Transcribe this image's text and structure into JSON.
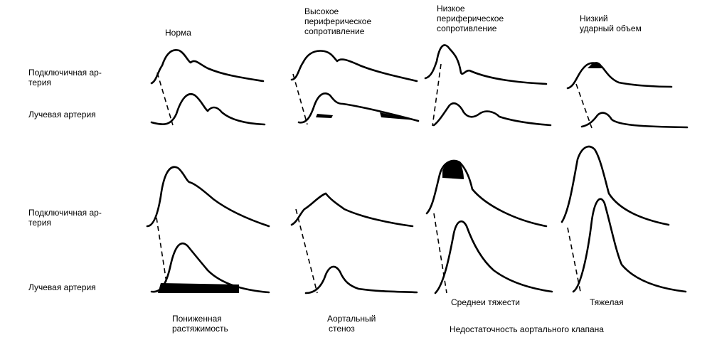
{
  "top": {
    "columns": [
      {
        "lines": [
          "Норма"
        ]
      },
      {
        "lines": [
          "Высокое",
          "периферическое",
          "сопротивление"
        ]
      },
      {
        "lines": [
          "Низкое",
          "периферическое",
          "сопротивление"
        ]
      },
      {
        "lines": [
          "Низкий",
          "ударный объем"
        ]
      }
    ]
  },
  "rows": {
    "subclavian": [
      "Подключичная ар-",
      "терия"
    ],
    "radial": "Лучевая артерия"
  },
  "bottom": {
    "captions": {
      "reduced_compliance": [
        "Пониженная",
        "растяжимость"
      ],
      "aortic_stenosis": [
        "Аортальный",
        "стеноз"
      ],
      "moderate": "Среднеи тяжести",
      "severe": "Тяжелая",
      "aortic_insufficiency": "Недостаточность аортального клапана"
    }
  }
}
